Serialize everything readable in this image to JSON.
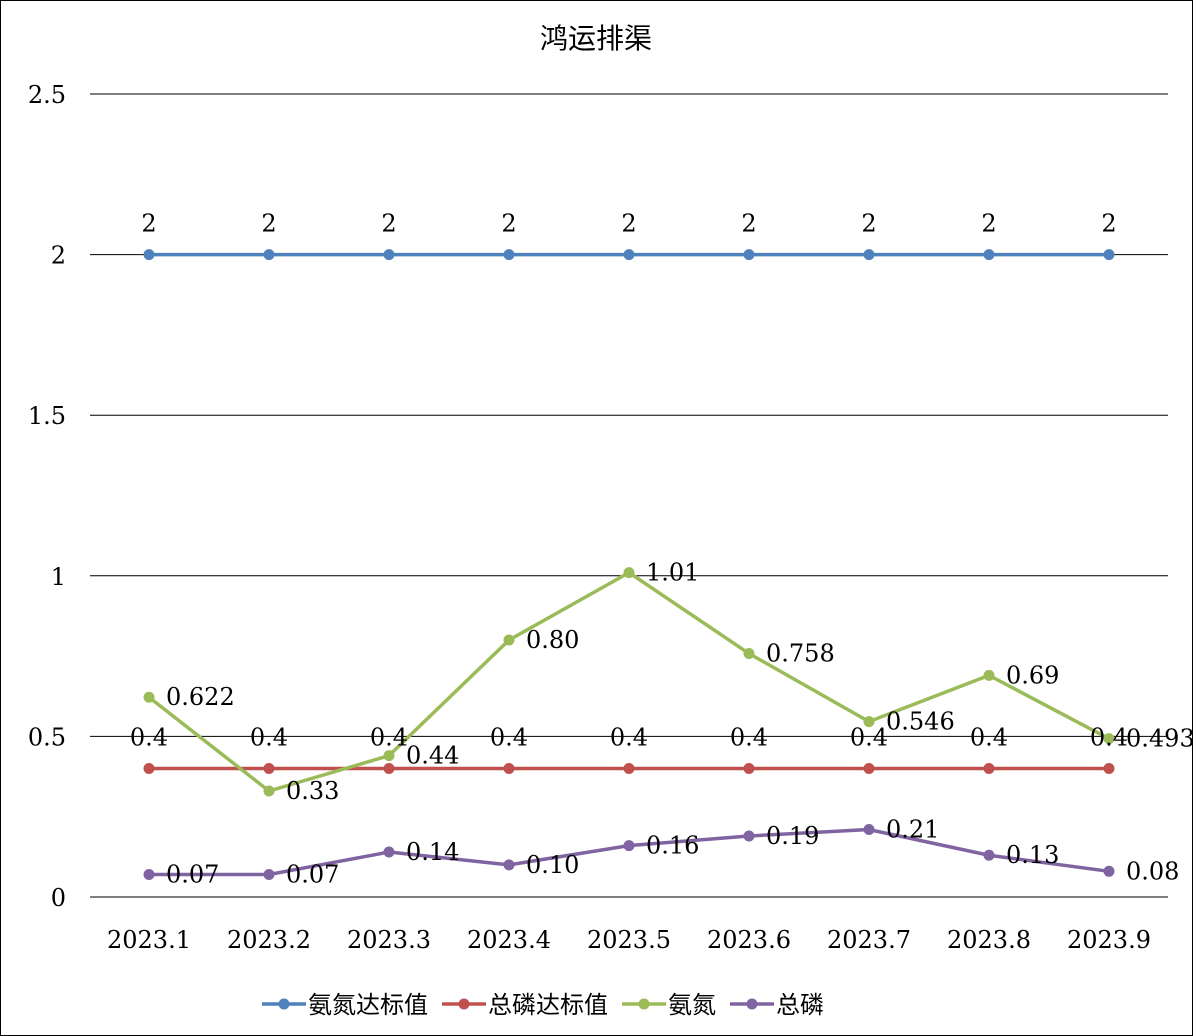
{
  "chart_data": {
    "type": "line",
    "title": "鸿运排渠",
    "xlabel": "",
    "ylabel": "",
    "categories": [
      "2023.1",
      "2023.2",
      "2023.3",
      "2023.4",
      "2023.5",
      "2023.6",
      "2023.7",
      "2023.8",
      "2023.9"
    ],
    "ylim": [
      0,
      2.5
    ],
    "yticks": [
      0,
      0.5,
      1,
      1.5,
      2,
      2.5
    ],
    "ytick_labels": [
      "0",
      "0.5",
      "1",
      "1.5",
      "2",
      "2.5"
    ],
    "grid": true,
    "legend_position": "bottom",
    "series": [
      {
        "name": "氨氮达标值",
        "color": "#4F81BD",
        "values": [
          2,
          2,
          2,
          2,
          2,
          2,
          2,
          2,
          2
        ],
        "labels": [
          "2",
          "2",
          "2",
          "2",
          "2",
          "2",
          "2",
          "2",
          "2"
        ],
        "label_position": "above"
      },
      {
        "name": "总磷达标值",
        "color": "#C0504D",
        "values": [
          0.4,
          0.4,
          0.4,
          0.4,
          0.4,
          0.4,
          0.4,
          0.4,
          0.4
        ],
        "labels": [
          "0.4",
          "0.4",
          "0.4",
          "0.4",
          "0.4",
          "0.4",
          "0.4",
          "0.4",
          "0.4"
        ],
        "label_position": "above"
      },
      {
        "name": "氨氮",
        "color": "#9BBB59",
        "values": [
          0.622,
          0.33,
          0.44,
          0.8,
          1.01,
          0.758,
          0.546,
          0.69,
          0.493
        ],
        "labels": [
          "0.622",
          "0.33",
          "0.44",
          "0.80",
          "1.01",
          "0.758",
          "0.546",
          "0.69",
          "0.493"
        ],
        "label_position": "right"
      },
      {
        "name": "总磷",
        "color": "#8064A2",
        "values": [
          0.07,
          0.07,
          0.14,
          0.1,
          0.16,
          0.19,
          0.21,
          0.13,
          0.08
        ],
        "labels": [
          "0.07",
          "0.07",
          "0.14",
          "0.10",
          "0.16",
          "0.19",
          "0.21",
          "0.13",
          "0.08"
        ],
        "label_position": "right"
      }
    ]
  }
}
